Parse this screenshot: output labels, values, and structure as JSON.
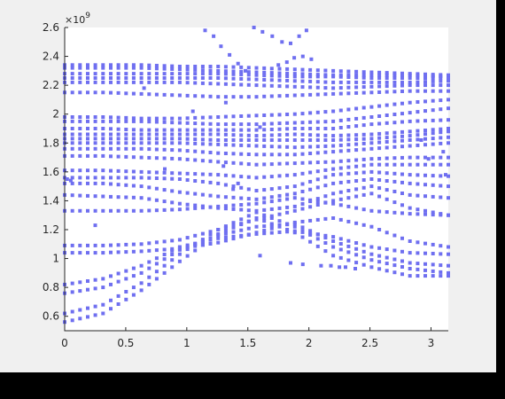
{
  "colors": {
    "figure_bg": "#f0f0f0",
    "axes_bg": "#ffffff",
    "marker": "#6f6ff0",
    "outer_bg": "#000000"
  },
  "chart_data": {
    "type": "scatter",
    "title": "",
    "xlabel": "",
    "ylabel": "",
    "xlim": [
      0,
      3.1416
    ],
    "ylim": [
      500000000,
      2600000000
    ],
    "y_exponent_label": "×10⁹",
    "y_exponent_power": "9",
    "xticks": [
      {
        "value": 0,
        "label": "0"
      },
      {
        "value": 0.5,
        "label": "0.5"
      },
      {
        "value": 1,
        "label": "1"
      },
      {
        "value": 1.5,
        "label": "1.5"
      },
      {
        "value": 2,
        "label": "2"
      },
      {
        "value": 2.5,
        "label": "2.5"
      },
      {
        "value": 3,
        "label": "3"
      }
    ],
    "yticks": [
      {
        "value": 600000000,
        "label": "0.6"
      },
      {
        "value": 800000000,
        "label": "0.8"
      },
      {
        "value": 1000000000,
        "label": "1"
      },
      {
        "value": 1200000000,
        "label": "1.2"
      },
      {
        "value": 1400000000,
        "label": "1.4"
      },
      {
        "value": 1600000000,
        "label": "1.6"
      },
      {
        "value": 1800000000,
        "label": "1.8"
      },
      {
        "value": 2000000000,
        "label": "2"
      },
      {
        "value": 2200000000,
        "label": "2.2"
      },
      {
        "value": 2400000000,
        "label": "2.4"
      },
      {
        "value": 2600000000,
        "label": "2.6"
      }
    ],
    "marker": "square",
    "grid": false,
    "legend": false,
    "x_samples": 51,
    "series": [
      {
        "y_knots": [
          0.56,
          0.62,
          0.78,
          0.98,
          1.17,
          1.28,
          1.18,
          1.02,
          0.94,
          0.88,
          0.88
        ]
      },
      {
        "y_knots": [
          0.62,
          0.68,
          0.83,
          1.03,
          1.2,
          1.32,
          1.22,
          1.08,
          0.99,
          0.93,
          0.9
        ]
      },
      {
        "y_knots": [
          0.76,
          0.8,
          0.9,
          1.06,
          1.16,
          1.22,
          1.24,
          1.12,
          1.03,
          0.97,
          0.95
        ]
      },
      {
        "y_knots": [
          0.82,
          0.86,
          0.95,
          1.08,
          1.14,
          1.17,
          1.19,
          1.15,
          1.08,
          1.04,
          1.03
        ]
      },
      {
        "y_knots": [
          1.04,
          1.04,
          1.05,
          1.07,
          1.11,
          1.18,
          1.25,
          1.28,
          1.22,
          1.12,
          1.08
        ]
      },
      {
        "y_knots": [
          1.09,
          1.09,
          1.1,
          1.13,
          1.2,
          1.27,
          1.33,
          1.4,
          1.45,
          1.35,
          1.3
        ]
      },
      {
        "y_knots": [
          1.33,
          1.33,
          1.33,
          1.34,
          1.36,
          1.38,
          1.42,
          1.38,
          1.33,
          1.31,
          1.3
        ]
      },
      {
        "y_knots": [
          1.44,
          1.43,
          1.42,
          1.38,
          1.35,
          1.33,
          1.36,
          1.45,
          1.5,
          1.44,
          1.42
        ]
      },
      {
        "y_knots": [
          1.52,
          1.52,
          1.5,
          1.46,
          1.43,
          1.41,
          1.45,
          1.52,
          1.55,
          1.52,
          1.5
        ]
      },
      {
        "y_knots": [
          1.56,
          1.56,
          1.56,
          1.55,
          1.52,
          1.47,
          1.5,
          1.58,
          1.6,
          1.58,
          1.57
        ]
      },
      {
        "y_knots": [
          1.61,
          1.61,
          1.6,
          1.59,
          1.58,
          1.56,
          1.58,
          1.62,
          1.65,
          1.65,
          1.65
        ]
      },
      {
        "y_knots": [
          1.71,
          1.71,
          1.7,
          1.69,
          1.67,
          1.65,
          1.66,
          1.67,
          1.69,
          1.7,
          1.7
        ]
      },
      {
        "y_knots": [
          1.76,
          1.76,
          1.76,
          1.75,
          1.73,
          1.72,
          1.72,
          1.74,
          1.76,
          1.78,
          1.8
        ]
      },
      {
        "y_knots": [
          1.8,
          1.8,
          1.8,
          1.8,
          1.79,
          1.78,
          1.77,
          1.78,
          1.8,
          1.82,
          1.84
        ]
      },
      {
        "y_knots": [
          1.83,
          1.83,
          1.83,
          1.83,
          1.82,
          1.82,
          1.82,
          1.82,
          1.83,
          1.85,
          1.88
        ]
      },
      {
        "y_knots": [
          1.86,
          1.86,
          1.86,
          1.86,
          1.86,
          1.85,
          1.86,
          1.85,
          1.86,
          1.88,
          1.9
        ]
      },
      {
        "y_knots": [
          1.9,
          1.9,
          1.89,
          1.89,
          1.89,
          1.89,
          1.9,
          1.9,
          1.93,
          1.95,
          1.96
        ]
      },
      {
        "y_knots": [
          1.95,
          1.95,
          1.95,
          1.94,
          1.93,
          1.93,
          1.94,
          1.95,
          1.98,
          2.01,
          2.04
        ]
      },
      {
        "y_knots": [
          1.98,
          1.98,
          1.97,
          1.97,
          1.98,
          1.99,
          2.0,
          2.02,
          2.05,
          2.08,
          2.1
        ]
      },
      {
        "y_knots": [
          2.15,
          2.15,
          2.14,
          2.13,
          2.12,
          2.12,
          2.13,
          2.14,
          2.15,
          2.16,
          2.16
        ]
      },
      {
        "y_knots": [
          2.22,
          2.22,
          2.22,
          2.22,
          2.21,
          2.2,
          2.19,
          2.18,
          2.19,
          2.2,
          2.2
        ]
      },
      {
        "y_knots": [
          2.25,
          2.25,
          2.25,
          2.25,
          2.25,
          2.24,
          2.23,
          2.22,
          2.22,
          2.22,
          2.23
        ]
      },
      {
        "y_knots": [
          2.28,
          2.28,
          2.28,
          2.28,
          2.28,
          2.27,
          2.26,
          2.26,
          2.25,
          2.25,
          2.25
        ]
      },
      {
        "y_knots": [
          2.32,
          2.32,
          2.32,
          2.31,
          2.3,
          2.29,
          2.28,
          2.27,
          2.27,
          2.27,
          2.26
        ]
      },
      {
        "y_knots": [
          2.34,
          2.34,
          2.34,
          2.33,
          2.33,
          2.32,
          2.31,
          2.3,
          2.29,
          2.28,
          2.27
        ]
      }
    ],
    "extra_points": [
      [
        1.15,
        2.58
      ],
      [
        1.22,
        2.54
      ],
      [
        1.28,
        2.47
      ],
      [
        1.35,
        2.41
      ],
      [
        1.42,
        2.35
      ],
      [
        1.48,
        2.3
      ],
      [
        1.55,
        2.6
      ],
      [
        1.62,
        2.57
      ],
      [
        1.7,
        2.54
      ],
      [
        1.78,
        2.5
      ],
      [
        1.85,
        2.49
      ],
      [
        1.92,
        2.54
      ],
      [
        1.98,
        2.58
      ],
      [
        1.88,
        2.39
      ],
      [
        1.95,
        2.4
      ],
      [
        2.02,
        2.38
      ],
      [
        1.75,
        2.34
      ],
      [
        1.82,
        2.36
      ],
      [
        0.25,
        1.23
      ],
      [
        0.65,
        2.18
      ],
      [
        0.82,
        1.62
      ],
      [
        1.6,
        1.02
      ],
      [
        1.85,
        0.97
      ],
      [
        1.95,
        0.96
      ],
      [
        2.1,
        0.95
      ],
      [
        2.18,
        0.95
      ],
      [
        2.25,
        0.94
      ],
      [
        2.3,
        0.94
      ],
      [
        2.38,
        0.93
      ],
      [
        0.02,
        1.55
      ],
      [
        0.05,
        1.54
      ],
      [
        3.1,
        1.74
      ],
      [
        3.12,
        1.58
      ],
      [
        1.38,
        1.48
      ],
      [
        1.42,
        1.52
      ],
      [
        2.98,
        1.69
      ],
      [
        2.92,
        1.82
      ],
      [
        1.05,
        2.02
      ],
      [
        1.32,
        2.08
      ],
      [
        1.6,
        1.91
      ],
      [
        1.3,
        1.64
      ]
    ]
  }
}
